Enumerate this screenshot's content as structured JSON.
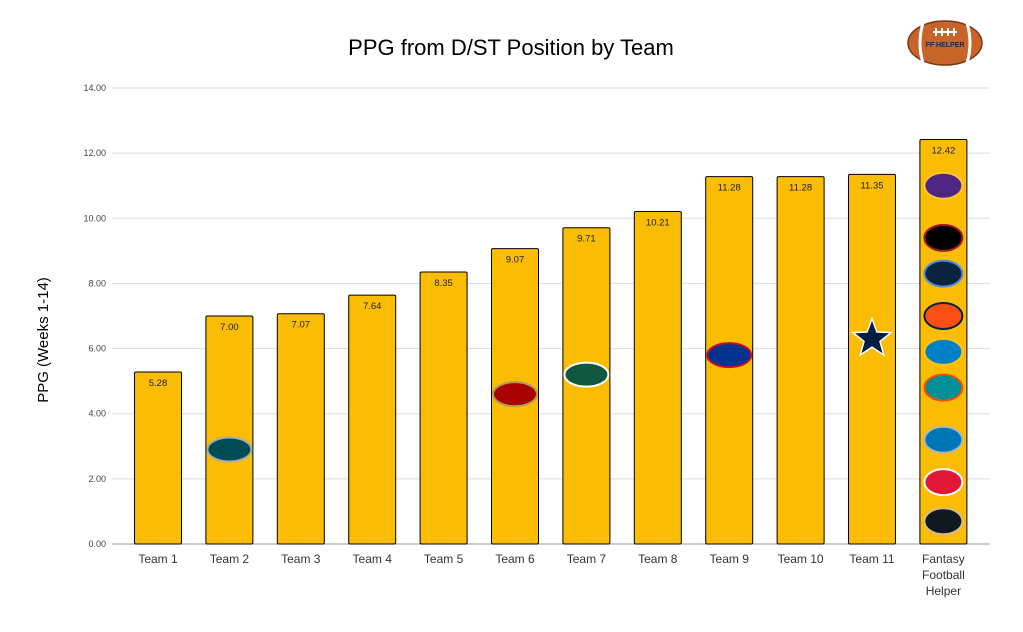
{
  "chart_data": {
    "type": "bar",
    "title": "PPG from D/ST Position by Team",
    "xlabel": "",
    "ylabel": "PPG (Weeks 1-14)",
    "ylim": [
      0,
      14
    ],
    "yticks": [
      "0.00",
      "2.00",
      "4.00",
      "6.00",
      "8.00",
      "10.00",
      "12.00",
      "14.00"
    ],
    "grid": true,
    "bar_color": "#FBBC04",
    "categories": [
      "Team 1",
      "Team 2",
      "Team 3",
      "Team 4",
      "Team 5",
      "Team 6",
      "Team 7",
      "Team 8",
      "Team 9",
      "Team 10",
      "Team 11",
      "Fantasy Football Helper"
    ],
    "values": [
      5.28,
      7.0,
      7.07,
      7.64,
      8.35,
      9.07,
      9.71,
      10.21,
      11.28,
      11.28,
      11.35,
      12.42
    ],
    "data_labels": [
      "5.28",
      "7.00",
      "7.07",
      "7.64",
      "8.35",
      "9.07",
      "9.71",
      "10.21",
      "11.28",
      "11.28",
      "11.35",
      "12.42"
    ],
    "bar_logos": [
      [],
      [
        "eagles-logo-icon"
      ],
      [],
      [],
      [],
      [
        "49ers-logo-icon"
      ],
      [
        "jets-logo-icon"
      ],
      [],
      [
        "bills-logo-icon"
      ],
      [],
      [
        "cowboys-logo-icon"
      ],
      [
        "vikings-logo-icon",
        "falcons-logo-icon",
        "titans-logo-icon",
        "broncos-logo-icon",
        "chargers-logo-icon",
        "dolphins-logo-icon",
        "lions-logo-icon",
        "chiefs-logo-icon",
        "saints-logo-icon"
      ]
    ]
  },
  "logo": {
    "text": "FF HELPER",
    "icon": "football-icon"
  }
}
